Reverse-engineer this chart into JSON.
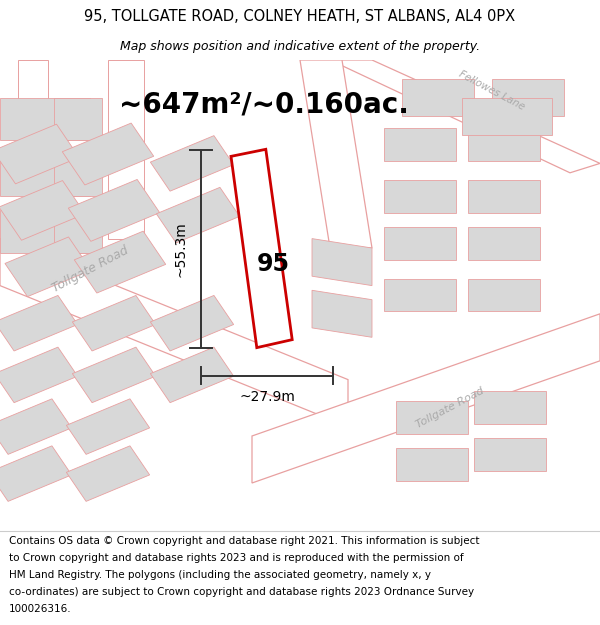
{
  "title_line1": "95, TOLLGATE ROAD, COLNEY HEATH, ST ALBANS, AL4 0PX",
  "title_line2": "Map shows position and indicative extent of the property.",
  "area_text": "~647m²/~0.160ac.",
  "label_95": "95",
  "dim_width": "~27.9m",
  "dim_height": "~55.3m",
  "street_label_left": "Tollgate Road",
  "street_label_right": "Tollgate Road",
  "street_label_top": "Fellowes Lane",
  "footer_lines": [
    "Contains OS data © Crown copyright and database right 2021. This information is subject",
    "to Crown copyright and database rights 2023 and is reproduced with the permission of",
    "HM Land Registry. The polygons (including the associated geometry, namely x, y",
    "co-ordinates) are subject to Crown copyright and database rights 2023 Ordnance Survey",
    "100026316."
  ],
  "map_bg": "#f7f7f5",
  "road_fill": "#ffffff",
  "building_fill": "#d8d8d8",
  "building_edge": "#e8a0a0",
  "road_edge": "#e8a0a0",
  "road_center_color": "#cccccc",
  "plot_color": "#cc0000",
  "dim_color": "#333333",
  "street_text_color": "#bbbbbb",
  "title_fontsize": 10.5,
  "subtitle_fontsize": 9,
  "area_fontsize": 20,
  "label_fontsize": 17,
  "dim_fontsize": 10,
  "street_fontsize": 9,
  "footer_fontsize": 7.5
}
